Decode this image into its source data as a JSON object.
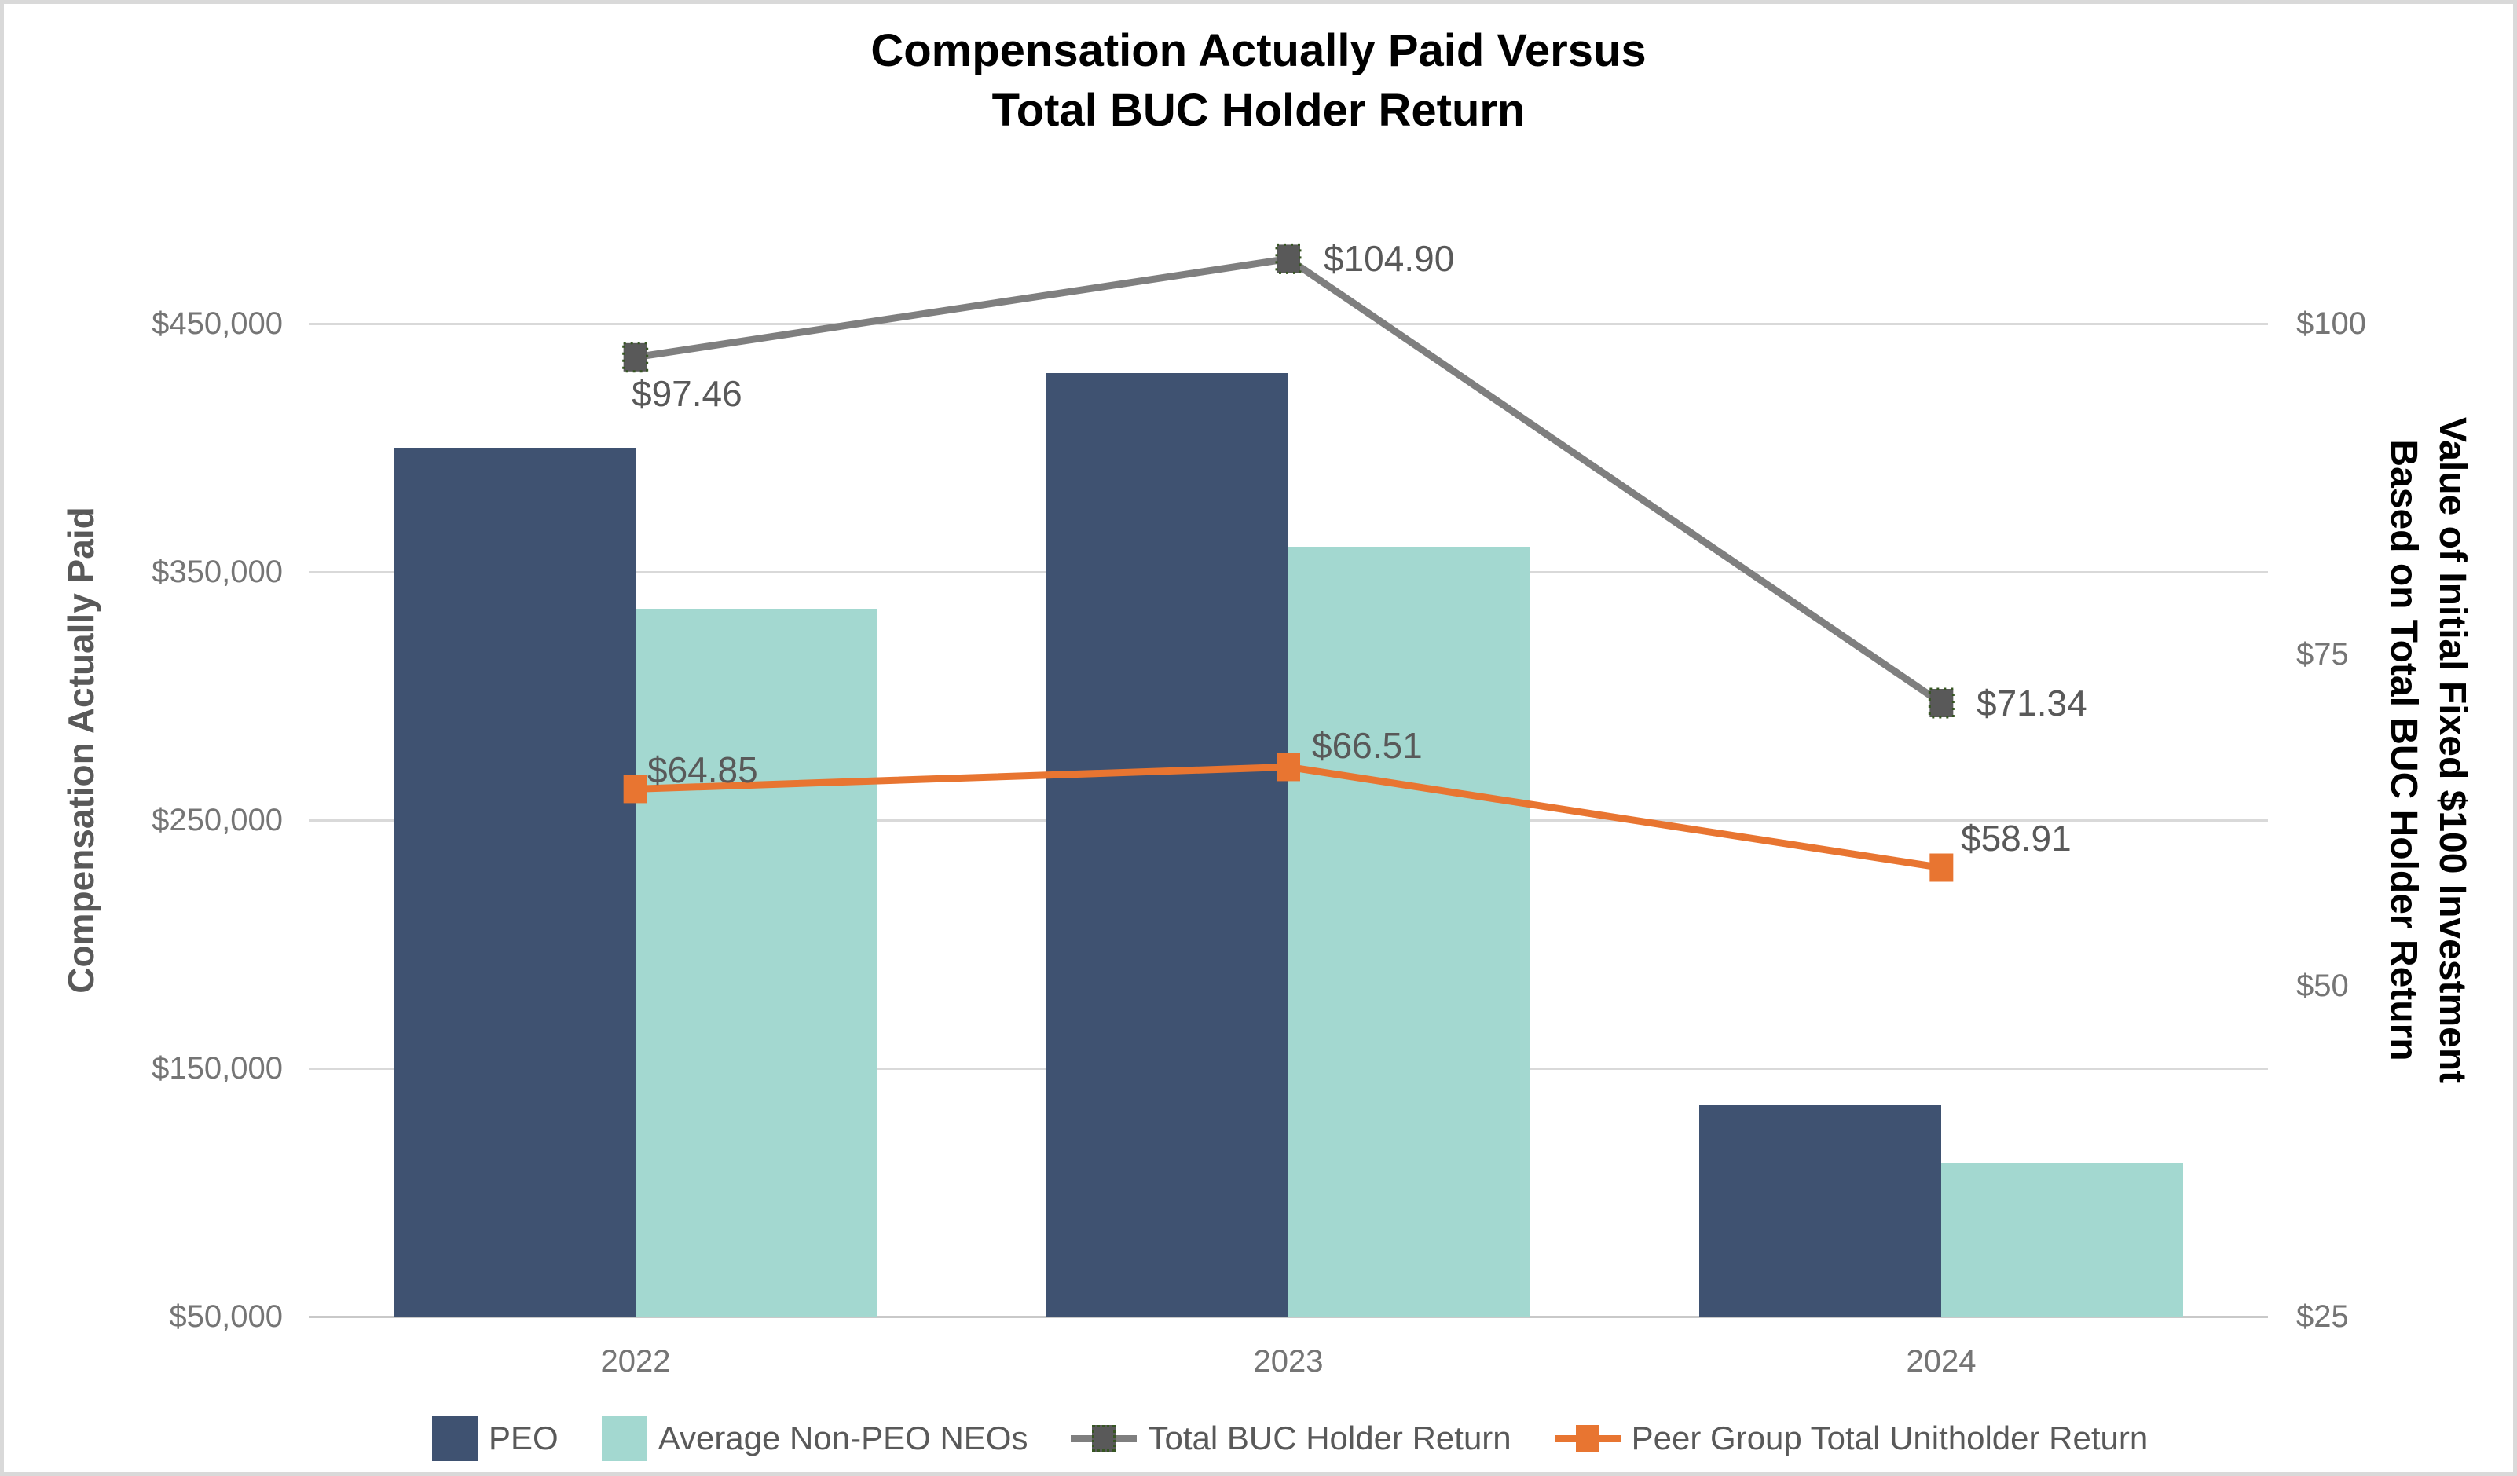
{
  "title": {
    "line1": "Compensation Actually Paid Versus",
    "line2": "Total BUC Holder Return"
  },
  "left_axis": {
    "title": "Compensation Actually Paid",
    "ticks": [
      {
        "label": "$450,000",
        "value": 450000
      },
      {
        "label": "$350,000",
        "value": 350000
      },
      {
        "label": "$250,000",
        "value": 250000
      },
      {
        "label": "$150,000",
        "value": 150000
      },
      {
        "label": "$50,000",
        "value": 50000
      }
    ]
  },
  "right_axis": {
    "title_line1": "Value of Initial Fixed $100 Investment",
    "title_line2": "Based on Total BUC Holder Return",
    "ticks": [
      {
        "label": "$100",
        "value": 100
      },
      {
        "label": "$75",
        "value": 75
      },
      {
        "label": "$50",
        "value": 50
      },
      {
        "label": "$25",
        "value": 25
      }
    ]
  },
  "chart_data": {
    "type": "bar+line",
    "categories": [
      "2022",
      "2023",
      "2024"
    ],
    "series": [
      {
        "name": "PEO",
        "type": "bar",
        "axis": "left",
        "color": "#3F5271",
        "values": [
          400000,
          430000,
          135000
        ]
      },
      {
        "name": "Average Non-PEO NEOs",
        "type": "bar",
        "axis": "left",
        "color": "#A3D8D0",
        "values": [
          335000,
          360000,
          112000
        ]
      },
      {
        "name": "Total BUC Holder Return",
        "type": "line",
        "axis": "right",
        "color": "#7F7F7F",
        "marker_color": "#595959",
        "marker_border": "#375623",
        "values": [
          97.46,
          104.9,
          71.34
        ],
        "labels": [
          "$97.46",
          "$104.90",
          "$71.34"
        ]
      },
      {
        "name": "Peer Group Total Unitholder Return",
        "type": "line",
        "axis": "right",
        "color": "#E87531",
        "marker_color": "#E87531",
        "marker_border": "",
        "values": [
          64.85,
          66.51,
          58.91
        ],
        "labels": [
          "$64.85",
          "$66.51",
          "$58.91"
        ]
      }
    ],
    "left_ylim": [
      50000,
      450000
    ],
    "right_ylim": [
      25,
      100
    ],
    "grid": true,
    "legend_position": "bottom"
  },
  "colors": {
    "background": "#FFFFFF",
    "canvas_border": "#D9D9D9",
    "gridline": "#D9D9D9",
    "axis_baseline": "#C9C9C9",
    "tick_label": "#757575",
    "data_label": "#595959",
    "title_text": "#000000",
    "legend_text": "#595959",
    "peo_bar": "#3F5271",
    "non_peo_bar": "#A3D8D0",
    "tsr_line": "#7F7F7F",
    "tsr_marker": "#595959",
    "tsr_marker_border": "#375623",
    "peer_line": "#E87531"
  }
}
